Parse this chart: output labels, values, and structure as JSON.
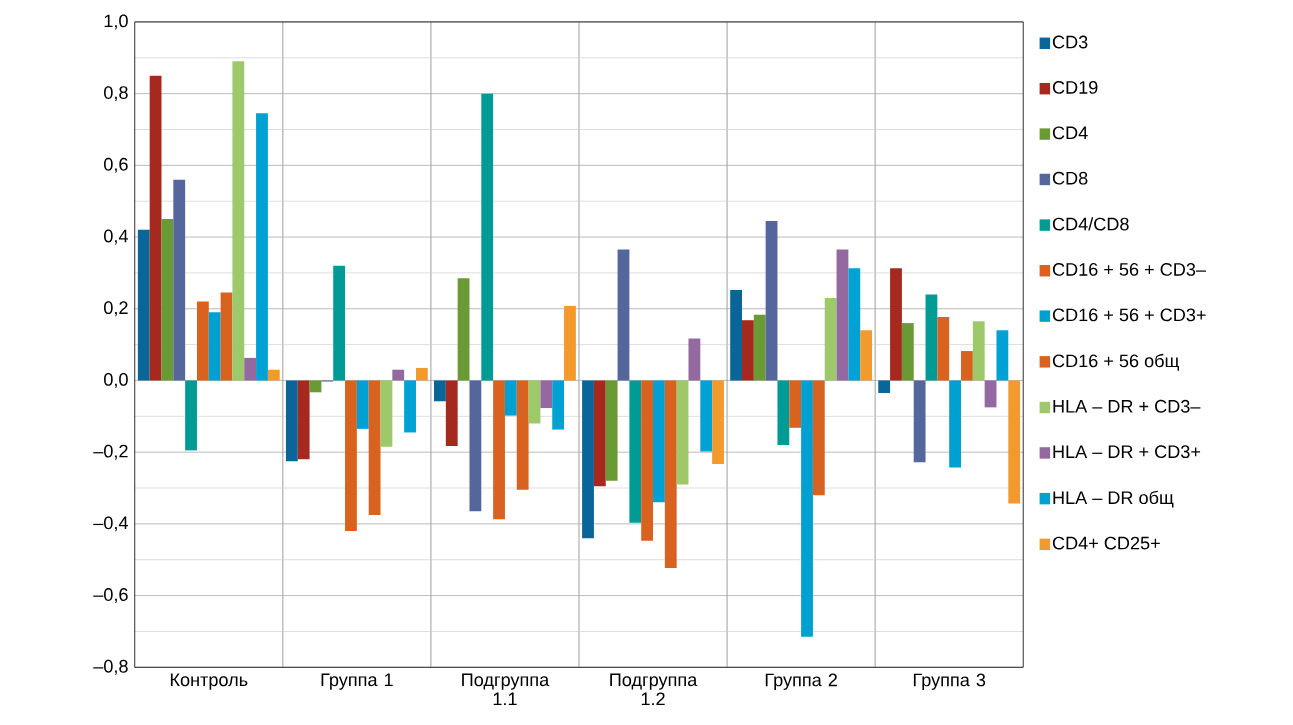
{
  "chart_data": {
    "type": "bar",
    "categories": [
      "Контроль",
      "Группа 1",
      "Подгруппа 1.1",
      "Подгруппа 1.2",
      "Группа 2",
      "Группа 3"
    ],
    "series": [
      {
        "name": "CD3",
        "color": "#0a6599",
        "values": [
          0.42,
          -0.225,
          -0.058,
          -0.44,
          0.252,
          -0.035
        ]
      },
      {
        "name": "CD19",
        "color": "#a5291e",
        "values": [
          0.85,
          -0.22,
          -0.183,
          -0.295,
          0.168,
          0.313
        ]
      },
      {
        "name": "CD4",
        "color": "#6a9a33",
        "values": [
          0.45,
          -0.033,
          0.285,
          -0.28,
          0.183,
          0.16
        ]
      },
      {
        "name": "CD8",
        "color": "#54669c",
        "values": [
          0.56,
          -0.003,
          -0.365,
          0.365,
          0.445,
          -0.228
        ]
      },
      {
        "name": "CD4/CD8",
        "color": "#009b95",
        "values": [
          -0.195,
          0.32,
          0.8,
          -0.397,
          -0.18,
          0.24
        ]
      },
      {
        "name": "CD16 + 56 + CD3–",
        "color": "#d9621f",
        "values": [
          0.22,
          -0.42,
          -0.387,
          -0.447,
          -0.132,
          0.177
        ]
      },
      {
        "name": "CD16 + 56 + CD3+",
        "color": "#00a0d2",
        "values": [
          0.19,
          -0.135,
          -0.098,
          -0.34,
          -0.715,
          -0.243
        ]
      },
      {
        "name": "CD16 + 56 общ",
        "color": "#d8621f",
        "values": [
          0.245,
          -0.375,
          -0.305,
          -0.523,
          -0.32,
          0.082
        ]
      },
      {
        "name": "HLA – DR + CD3–",
        "color": "#9dc96a",
        "values": [
          0.89,
          -0.185,
          -0.12,
          -0.29,
          0.23,
          0.165
        ]
      },
      {
        "name": "HLA – DR + CD3+",
        "color": "#94699f",
        "values": [
          0.063,
          0.03,
          -0.077,
          0.117,
          0.365,
          -0.075
        ]
      },
      {
        "name": "HLA – DR общ",
        "color": "#00a1d3",
        "values": [
          0.745,
          -0.145,
          -0.137,
          -0.198,
          0.313,
          0.14
        ]
      },
      {
        "name": "CD4+ CD25+",
        "color": "#f39a2f",
        "values": [
          0.03,
          0.035,
          0.208,
          -0.233,
          0.14,
          -0.343
        ]
      }
    ],
    "ylim": [
      -0.8,
      1.0
    ],
    "yticks": [
      {
        "value": -0.8,
        "label": "–0,8"
      },
      {
        "value": -0.6,
        "label": "–0,6"
      },
      {
        "value": -0.4,
        "label": "–0,4"
      },
      {
        "value": -0.2,
        "label": "–0,2"
      },
      {
        "value": 0.0,
        "label": "0,0"
      },
      {
        "value": 0.2,
        "label": "0,2"
      },
      {
        "value": 0.4,
        "label": "0,4"
      },
      {
        "value": 0.6,
        "label": "0,6"
      },
      {
        "value": 0.8,
        "label": "0,8"
      },
      {
        "value": 1.0,
        "label": "1,0"
      }
    ],
    "grid": true,
    "legend": "right"
  }
}
